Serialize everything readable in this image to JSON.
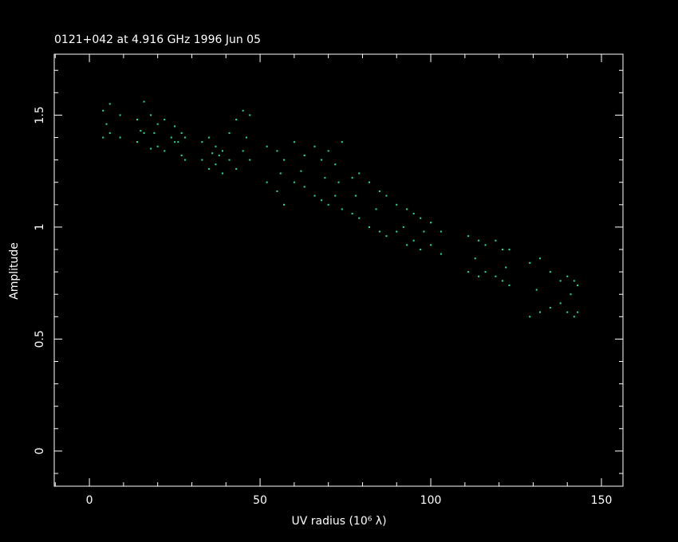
{
  "chart_data": {
    "type": "scatter",
    "title": "0121+042 at 4.916 GHz 1996 Jun 05",
    "x_label": "UV radius  (10⁶ λ)",
    "y_label": "Amplitude",
    "color": "#1ee68c",
    "xlim": [
      -10.3,
      156.3
    ],
    "ylim": [
      -0.157,
      1.772
    ],
    "xticks": [
      0,
      50,
      100,
      150
    ],
    "yticks": [
      0,
      0.5,
      1,
      1.5
    ],
    "xminorticks": [
      -10,
      10,
      20,
      30,
      40,
      60,
      70,
      80,
      90,
      110,
      120,
      130,
      140
    ],
    "yminorticks": [
      -0.1,
      0.1,
      0.2,
      0.3,
      0.4,
      0.6,
      0.7,
      0.8,
      0.9,
      1.1,
      1.2,
      1.3,
      1.4,
      1.6,
      1.7
    ],
    "grid": false,
    "x": [
      4,
      4,
      6,
      6,
      9,
      9,
      14,
      14,
      16,
      16,
      18,
      18,
      20,
      20,
      22,
      22,
      25,
      25,
      27,
      27,
      28,
      28,
      33,
      33,
      35,
      35,
      37,
      37,
      39,
      39,
      41,
      41,
      43,
      43,
      45,
      45,
      47,
      47,
      52,
      52,
      55,
      55,
      57,
      57,
      60,
      60,
      63,
      63,
      66,
      66,
      68,
      68,
      70,
      70,
      72,
      72,
      74,
      74,
      77,
      77,
      79,
      79,
      82,
      82,
      85,
      85,
      87,
      87,
      90,
      90,
      93,
      93,
      95,
      95,
      97,
      97,
      100,
      100,
      103,
      103,
      111,
      111,
      114,
      114,
      116,
      116,
      119,
      119,
      121,
      121,
      123,
      123,
      129,
      129,
      132,
      132,
      135,
      135,
      138,
      138,
      140,
      140,
      142,
      142,
      143,
      143,
      5,
      15,
      19,
      24,
      26,
      36,
      38,
      46,
      56,
      62,
      69,
      73,
      78,
      84,
      92,
      98,
      113,
      122,
      131,
      141
    ],
    "values": [
      1.52,
      1.4,
      1.55,
      1.42,
      1.5,
      1.4,
      1.48,
      1.38,
      1.56,
      1.42,
      1.5,
      1.35,
      1.46,
      1.36,
      1.48,
      1.34,
      1.45,
      1.38,
      1.42,
      1.32,
      1.4,
      1.3,
      1.38,
      1.3,
      1.4,
      1.26,
      1.36,
      1.28,
      1.34,
      1.24,
      1.42,
      1.3,
      1.48,
      1.26,
      1.52,
      1.34,
      1.5,
      1.3,
      1.36,
      1.2,
      1.34,
      1.16,
      1.3,
      1.1,
      1.38,
      1.2,
      1.32,
      1.18,
      1.36,
      1.14,
      1.3,
      1.12,
      1.34,
      1.1,
      1.28,
      1.14,
      1.38,
      1.08,
      1.22,
      1.06,
      1.24,
      1.04,
      1.2,
      1.0,
      1.16,
      0.98,
      1.14,
      0.96,
      1.1,
      0.98,
      1.08,
      0.92,
      1.06,
      0.94,
      1.04,
      0.9,
      1.02,
      0.92,
      0.98,
      0.88,
      0.96,
      0.8,
      0.94,
      0.78,
      0.92,
      0.8,
      0.94,
      0.78,
      0.9,
      0.76,
      0.9,
      0.74,
      0.84,
      0.6,
      0.86,
      0.62,
      0.8,
      0.64,
      0.76,
      0.66,
      0.78,
      0.62,
      0.76,
      0.6,
      0.74,
      0.62,
      1.46,
      1.43,
      1.42,
      1.4,
      1.38,
      1.33,
      1.32,
      1.4,
      1.24,
      1.25,
      1.22,
      1.2,
      1.14,
      1.08,
      1.0,
      0.98,
      0.86,
      0.82,
      0.72,
      0.7
    ]
  }
}
